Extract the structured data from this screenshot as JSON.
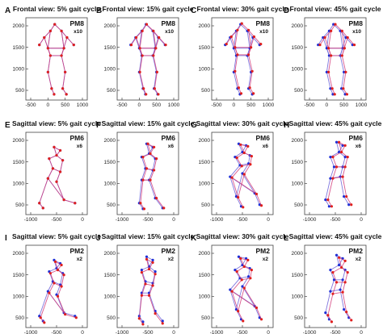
{
  "chart_data": [
    {
      "label": "A",
      "title": "Frontal view: 5% gait cycle",
      "annotation": [
        "PM8",
        "x10"
      ],
      "view": "frontal",
      "xticks": [
        "-500",
        "0",
        "500",
        "1000"
      ],
      "yticks": [
        "500",
        "1000",
        "1500",
        "2000"
      ]
    },
    {
      "label": "B",
      "title": "Frontal view: 15% gait cycle",
      "annotation": [
        "PM8",
        "x10"
      ],
      "view": "frontal",
      "xticks": [
        "-500",
        "0",
        "500",
        "1000"
      ],
      "yticks": [
        "500",
        "1000",
        "1500",
        "2000"
      ]
    },
    {
      "label": "C",
      "title": "Frontal view: 30% gait cycle",
      "annotation": [
        "PM8",
        "x10"
      ],
      "view": "frontal",
      "xticks": [
        "-500",
        "0",
        "500",
        "1000"
      ],
      "yticks": [
        "500",
        "1000",
        "1500",
        "2000"
      ]
    },
    {
      "label": "D",
      "title": "Frontal view: 45% gait cycle",
      "annotation": [
        "PM8",
        "x10"
      ],
      "view": "frontal",
      "xticks": [
        "-500",
        "0",
        "500",
        "1000"
      ],
      "yticks": [
        "500",
        "1000",
        "1500",
        "2000"
      ]
    },
    {
      "label": "E",
      "title": "Sagittal view: 5% gait cycle",
      "annotation": [
        "PM6",
        "x6"
      ],
      "view": "sagittal",
      "xticks": [
        "-1000",
        "-500",
        "0"
      ],
      "yticks": [
        "500",
        "1000",
        "1500",
        "2000"
      ]
    },
    {
      "label": "F",
      "title": "Sagittal view: 15% gait cycle",
      "annotation": [
        "PM6",
        "x6"
      ],
      "view": "sagittal",
      "xticks": [
        "-1000",
        "-500",
        "0"
      ],
      "yticks": [
        "500",
        "1000",
        "1500",
        "2000"
      ]
    },
    {
      "label": "G",
      "title": "Sagittal view: 30% gait cycle",
      "annotation": [
        "PM6",
        "x6"
      ],
      "view": "sagittal",
      "xticks": [
        "-1000",
        "-500",
        "0"
      ],
      "yticks": [
        "500",
        "1000",
        "1500",
        "2000"
      ]
    },
    {
      "label": "H",
      "title": "Sagittal view: 45% gait cycle",
      "annotation": [
        "PM6",
        "x6"
      ],
      "view": "sagittal",
      "xticks": [
        "-1000",
        "-500",
        "0"
      ],
      "yticks": [
        "500",
        "1000",
        "1500",
        "2000"
      ]
    },
    {
      "label": "I",
      "title": "Sagittal view: 5% gait cycle",
      "annotation": [
        "PM2",
        "x2"
      ],
      "view": "sagittal",
      "xticks": [
        "-1000",
        "-500",
        "0"
      ],
      "yticks": [
        "500",
        "1000",
        "1500",
        "2000"
      ]
    },
    {
      "label": "J",
      "title": "Sagittal view: 15% gait cycle",
      "annotation": [
        "PM2",
        "x2"
      ],
      "view": "sagittal",
      "xticks": [
        "-1000",
        "-500",
        "0"
      ],
      "yticks": [
        "500",
        "1000",
        "1500",
        "2000"
      ]
    },
    {
      "label": "K",
      "title": "Sagittal view: 30% gait cycle",
      "annotation": [
        "PM2",
        "x2"
      ],
      "view": "sagittal",
      "xticks": [
        "-1000",
        "-500",
        "0"
      ],
      "yticks": [
        "500",
        "1000",
        "1500",
        "2000"
      ]
    },
    {
      "label": "L",
      "title": "Sagittal view: 45% gait cycle",
      "annotation": [
        "PM2",
        "x2"
      ],
      "view": "sagittal",
      "xticks": [
        "-1000",
        "-500",
        "0"
      ],
      "yticks": [
        "500",
        "1000",
        "1500",
        "2000"
      ]
    }
  ],
  "colors": {
    "red_markers": "#e0201e",
    "blue_markers": "#1f2fd6",
    "red_lines": "#d23c7a",
    "blue_lines": "#6b5fd8",
    "frame": "#444444"
  }
}
